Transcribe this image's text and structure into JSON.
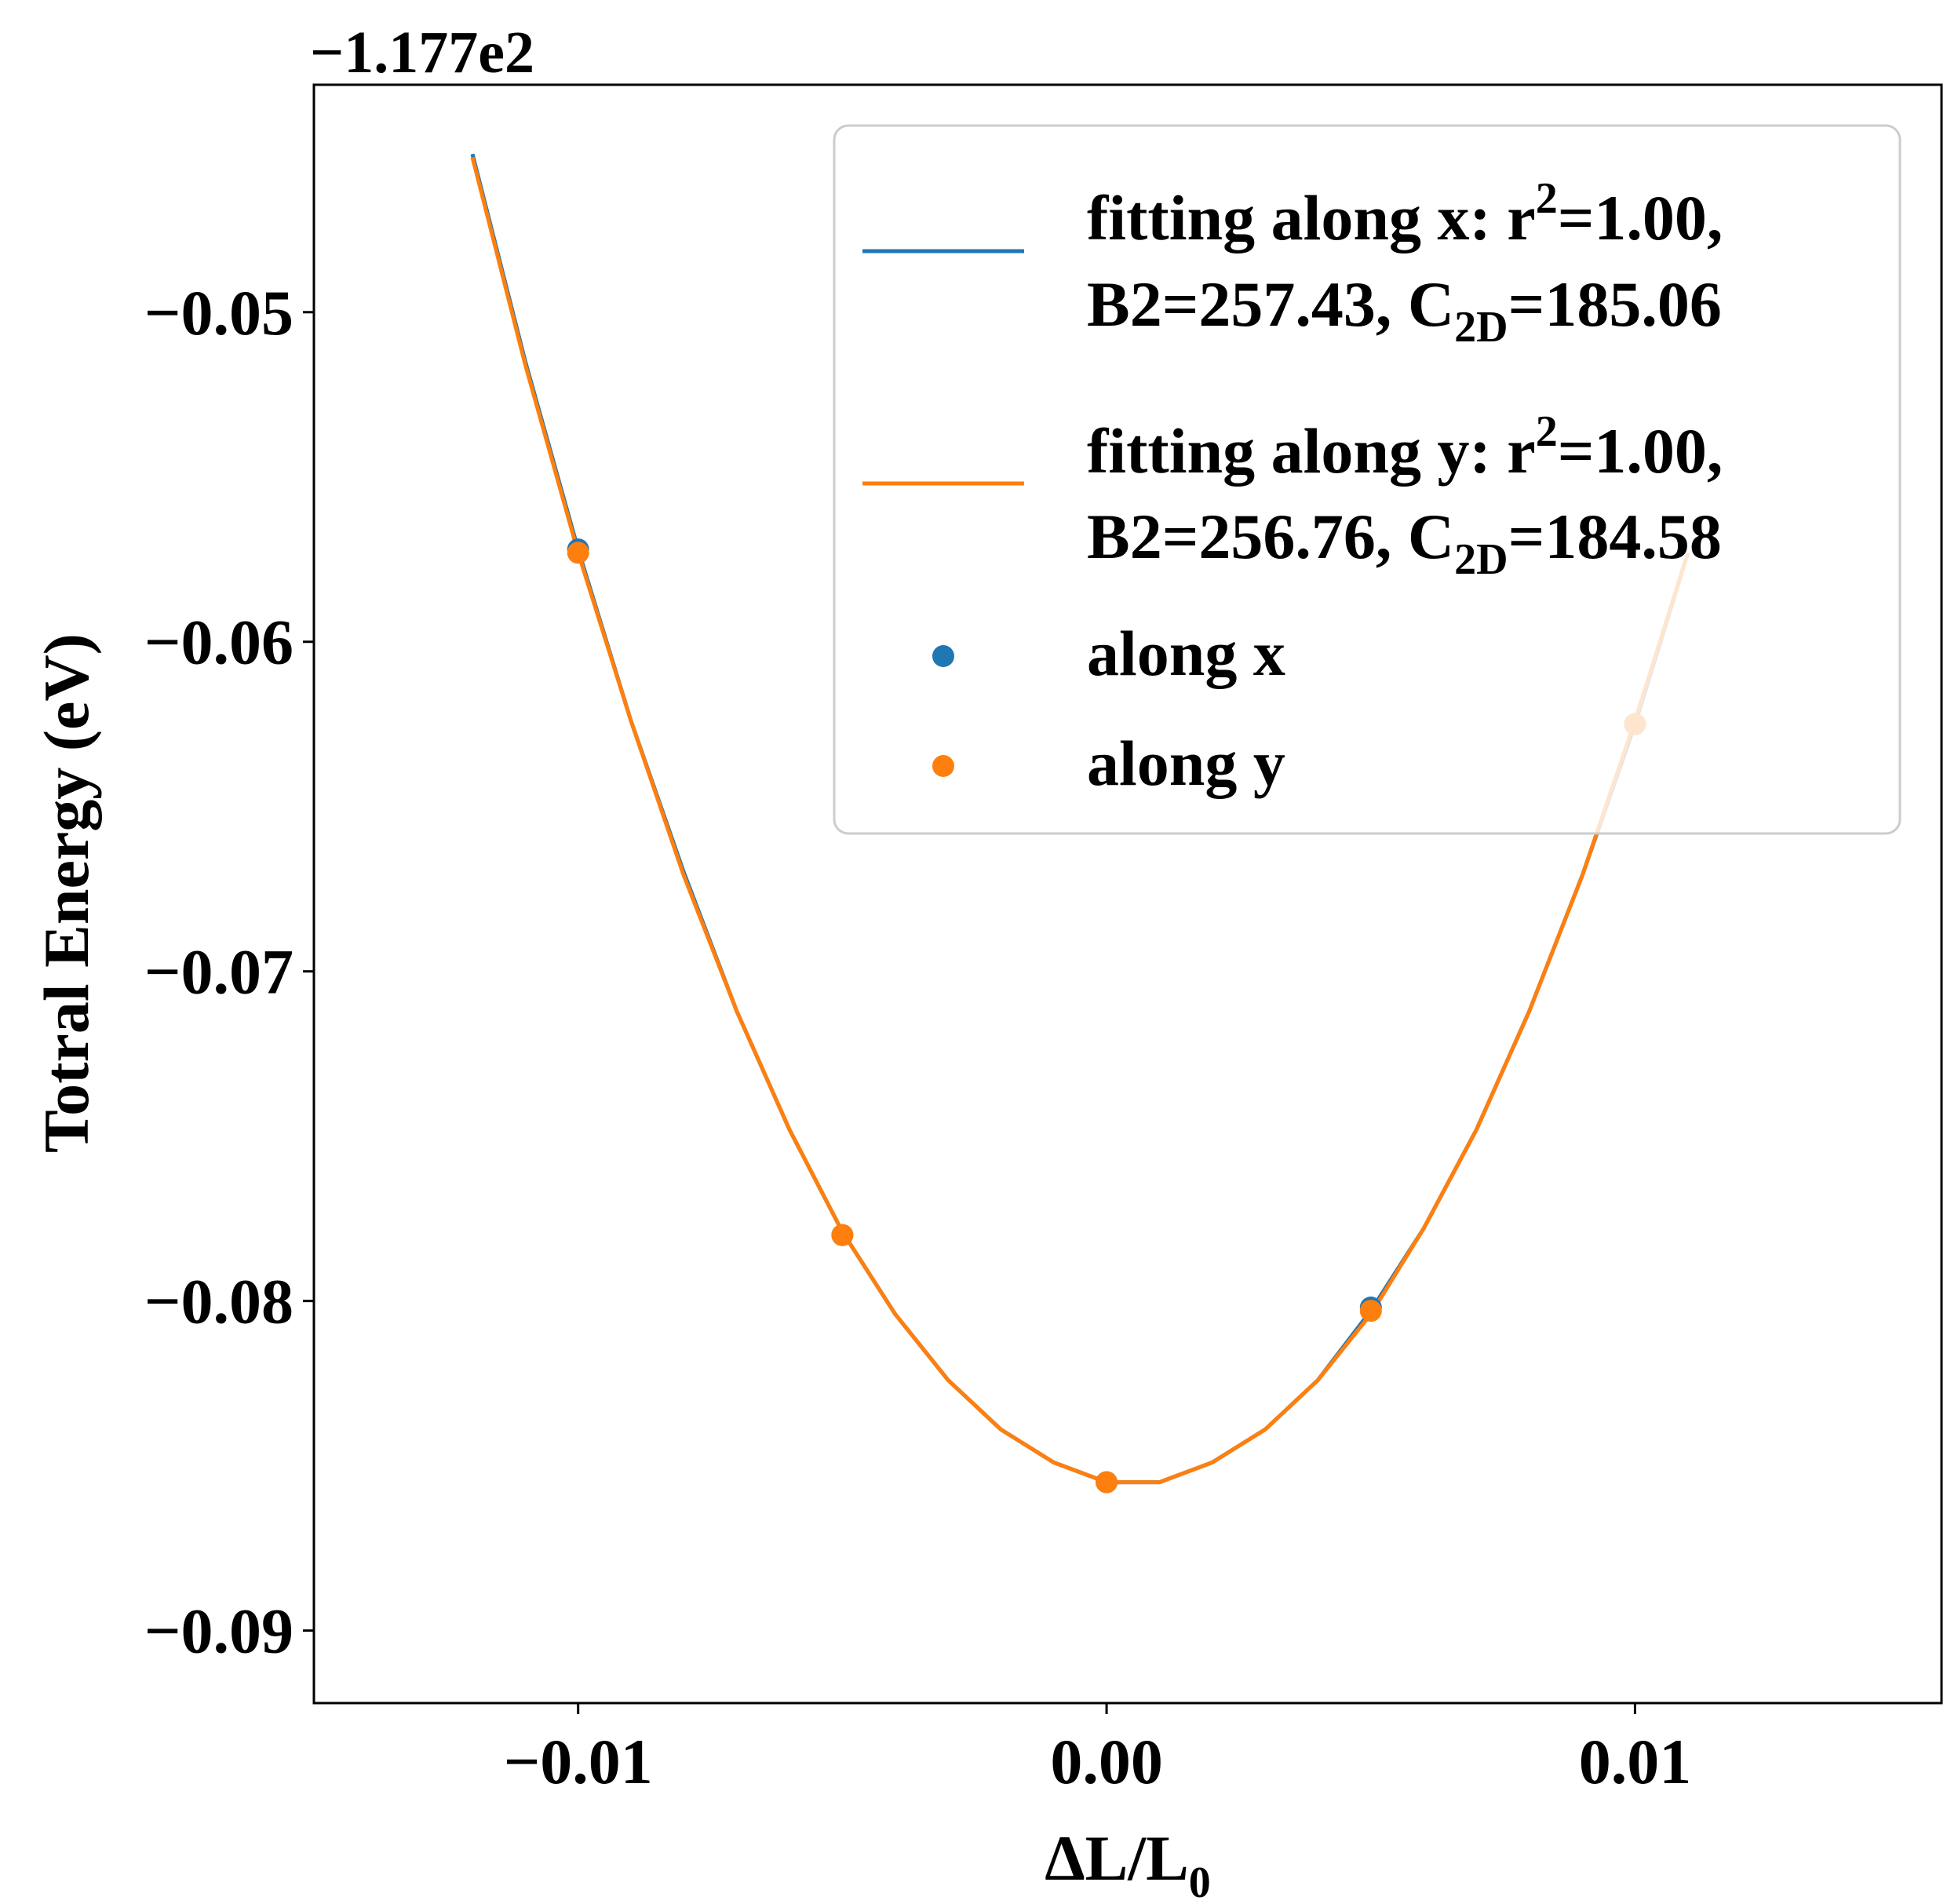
{
  "chart_data": {
    "type": "line",
    "offset_text": "−1.177e2",
    "xlabel": "ΔL/L",
    "xlabel_sub": "0",
    "ylabel": "Totral Energy (eV)",
    "xlim": [
      -0.015,
      0.0158
    ],
    "ylim": [
      -0.0922,
      -0.0431
    ],
    "x_ticks": [
      -0.01,
      0.0,
      0.01
    ],
    "x_tick_labels": [
      "−0.01",
      "0.00",
      "0.01"
    ],
    "y_ticks": [
      -0.05,
      -0.06,
      -0.07,
      -0.08,
      -0.09
    ],
    "y_tick_labels": [
      "−0.05",
      "−0.06",
      "−0.07",
      "−0.08",
      "−0.09"
    ],
    "grid": false,
    "legend_position": "upper right",
    "colors": {
      "x": "#1f77b4",
      "y": "#ff7f0e"
    },
    "fits": [
      {
        "name_line1": "fitting along x: r",
        "name_sup": "2",
        "name_line1_end": "=1.00,",
        "name_line2_start": "B2=257.43, C",
        "name_sub": "2D",
        "name_line2_end": "=185.06",
        "color": "#1f77b4",
        "x": [
          -0.012,
          -0.011,
          -0.01,
          -0.009,
          -0.008,
          -0.007,
          -0.006,
          -0.005,
          -0.004,
          -0.003,
          -0.002,
          -0.001,
          0.0,
          0.001,
          0.002,
          0.003,
          0.004,
          0.005,
          0.006,
          0.007,
          0.008,
          0.009,
          0.01,
          0.011
        ],
        "y": [
          -0.0452,
          -0.0515,
          -0.0572,
          -0.0624,
          -0.067,
          -0.0712,
          -0.0748,
          -0.0779,
          -0.0804,
          -0.0824,
          -0.0839,
          -0.0849,
          -0.0855,
          -0.0855,
          -0.0849,
          -0.0839,
          -0.0824,
          -0.0803,
          -0.0778,
          -0.0748,
          -0.0712,
          -0.0671,
          -0.0625,
          -0.0573
        ]
      },
      {
        "name_line1": "fitting along y: r",
        "name_sup": "2",
        "name_line1_end": "=1.00,",
        "name_line2_start": "B2=256.76, C",
        "name_sub": "2D",
        "name_line2_end": "=184.58",
        "color": "#ff7f0e",
        "x": [
          -0.012,
          -0.011,
          -0.01,
          -0.009,
          -0.008,
          -0.007,
          -0.006,
          -0.005,
          -0.004,
          -0.003,
          -0.002,
          -0.001,
          0.0,
          0.001,
          0.002,
          0.003,
          0.004,
          0.005,
          0.006,
          0.007,
          0.008,
          0.009,
          0.01,
          0.011
        ],
        "y": [
          -0.0453,
          -0.0516,
          -0.0573,
          -0.0624,
          -0.0671,
          -0.0712,
          -0.0748,
          -0.0779,
          -0.0804,
          -0.0824,
          -0.0839,
          -0.0849,
          -0.0855,
          -0.0855,
          -0.0849,
          -0.0839,
          -0.0824,
          -0.0804,
          -0.0778,
          -0.0748,
          -0.0712,
          -0.0671,
          -0.0624,
          -0.0573
        ]
      }
    ],
    "series": [
      {
        "name": "along x",
        "color": "#1f77b4",
        "x": [
          -0.01,
          -0.005,
          0.0,
          0.005,
          0.01
        ],
        "y": [
          -0.0572,
          -0.078,
          -0.0855,
          -0.0802,
          -0.0625
        ]
      },
      {
        "name": "along y",
        "color": "#ff7f0e",
        "x": [
          -0.01,
          -0.005,
          0.0,
          0.005,
          0.01
        ],
        "y": [
          -0.0573,
          -0.078,
          -0.0855,
          -0.0803,
          -0.0625
        ]
      }
    ]
  }
}
